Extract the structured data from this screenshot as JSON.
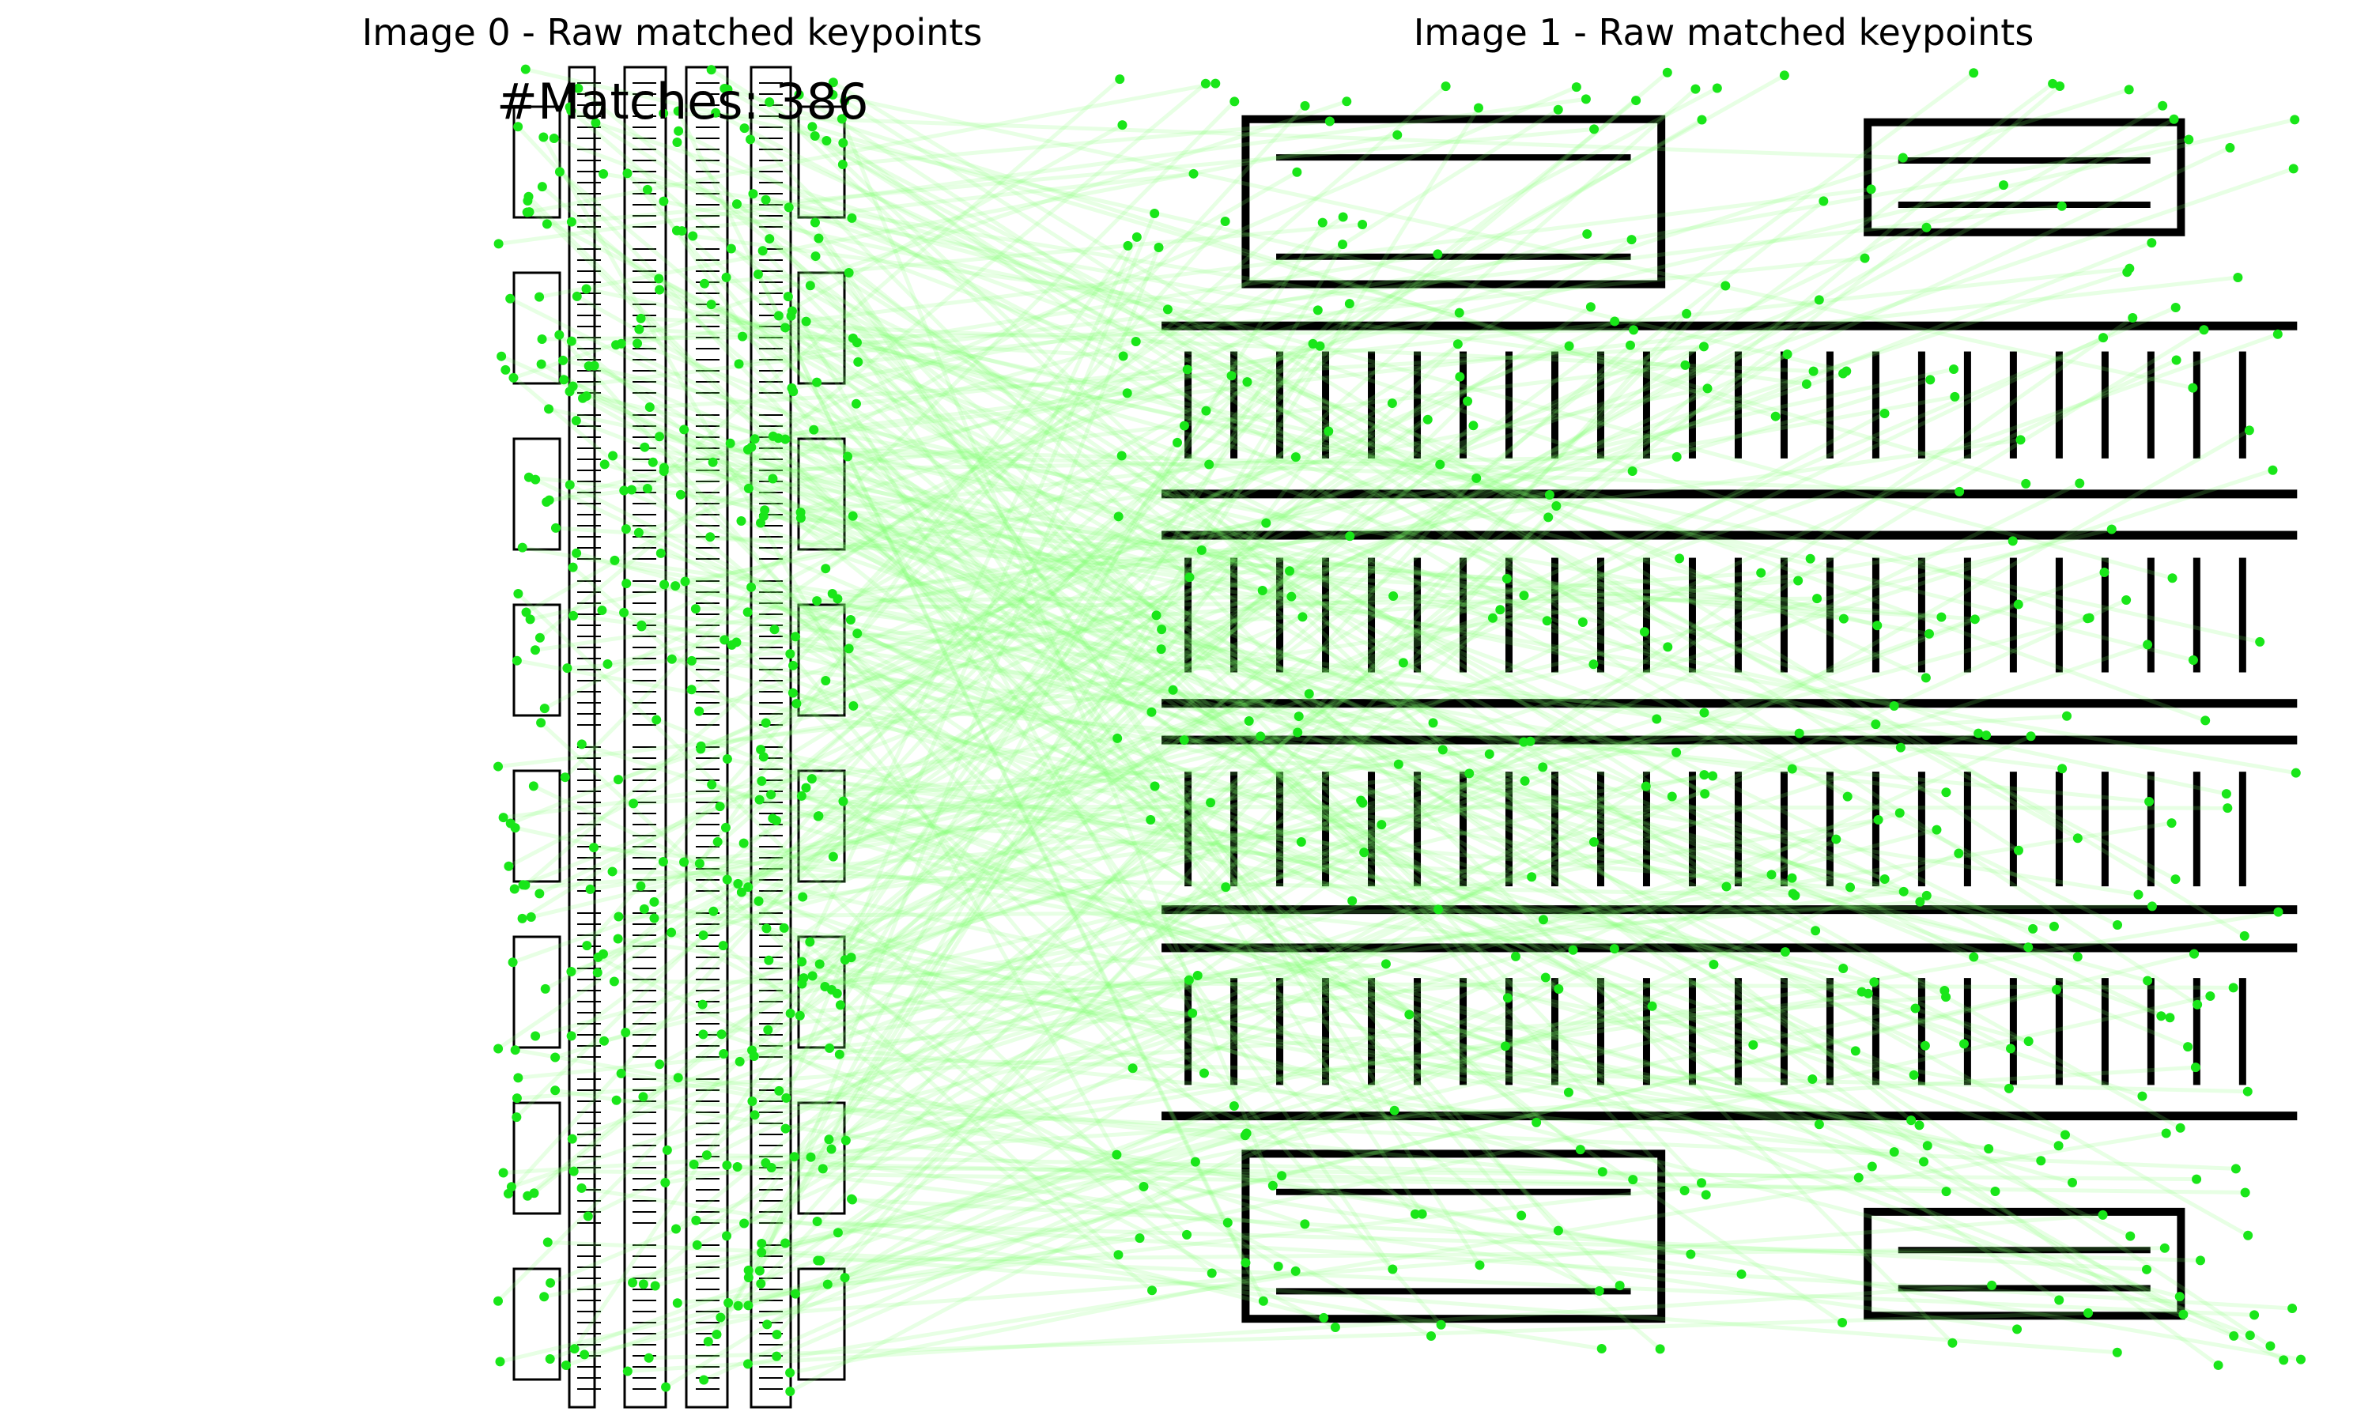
{
  "panels": [
    {
      "title": "Image 0 - Raw matched keypoints"
    },
    {
      "title": "Image 1 - Raw matched keypoints"
    }
  ],
  "matches_label": "#Matches: 386",
  "match_count": 386,
  "colors": {
    "match_line": "#7cff6a",
    "keypoint": "#19e619",
    "layout": "#000000"
  }
}
